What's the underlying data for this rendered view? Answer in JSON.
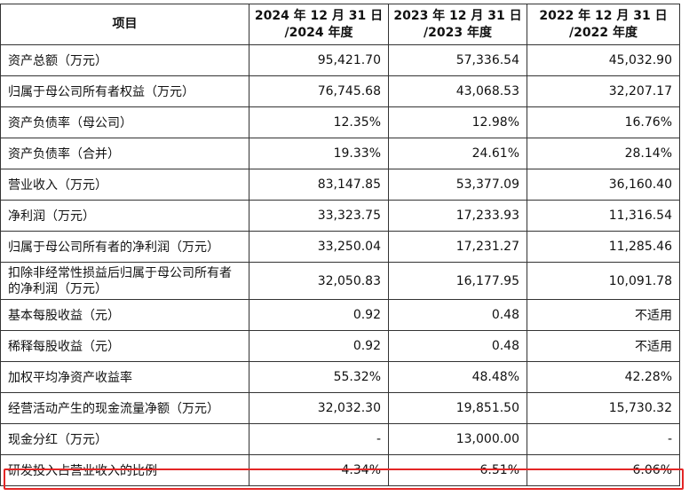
{
  "header": {
    "item": "项目",
    "col1_line1": "2024 年 12 月 31 日",
    "col1_line2": "/2024 年度",
    "col2_line1": "2023 年 12 月 31 日",
    "col2_line2": "/2023 年度",
    "col3_line1": "2022 年 12 月 31 日",
    "col3_line2": "/2022 年度"
  },
  "rows": [
    {
      "label": "资产总额（万元）",
      "v2024": "95,421.70",
      "v2023": "57,336.54",
      "v2022": "45,032.90"
    },
    {
      "label": "归属于母公司所有者权益（万元）",
      "v2024": "76,745.68",
      "v2023": "43,068.53",
      "v2022": "32,207.17"
    },
    {
      "label": "资产负债率（母公司）",
      "v2024": "12.35%",
      "v2023": "12.98%",
      "v2022": "16.76%"
    },
    {
      "label": "资产负债率（合并）",
      "v2024": "19.33%",
      "v2023": "24.61%",
      "v2022": "28.14%"
    },
    {
      "label": "营业收入（万元）",
      "v2024": "83,147.85",
      "v2023": "53,377.09",
      "v2022": "36,160.40"
    },
    {
      "label": "净利润（万元）",
      "v2024": "33,323.75",
      "v2023": "17,233.93",
      "v2022": "11,316.54"
    },
    {
      "label": "归属于母公司所有者的净利润（万元）",
      "v2024": "33,250.04",
      "v2023": "17,231.27",
      "v2022": "11,285.46"
    },
    {
      "label": "扣除非经常性损益后归属于母公司所有者的净利润（万元）",
      "v2024": "32,050.83",
      "v2023": "16,177.95",
      "v2022": "10,091.78"
    },
    {
      "label": "基本每股收益（元）",
      "v2024": "0.92",
      "v2023": "0.48",
      "v2022": "不适用"
    },
    {
      "label": "稀释每股收益（元）",
      "v2024": "0.92",
      "v2023": "0.48",
      "v2022": "不适用"
    },
    {
      "label": "加权平均净资产收益率",
      "v2024": "55.32%",
      "v2023": "48.48%",
      "v2022": "42.28%"
    },
    {
      "label": "经营活动产生的现金流量净额（万元）",
      "v2024": "32,032.30",
      "v2023": "19,851.50",
      "v2022": "15,730.32"
    },
    {
      "label": "现金分红（万元）",
      "v2024": "-",
      "v2023": "13,000.00",
      "v2022": "-"
    },
    {
      "label": "研发投入占营业收入的比例",
      "v2024": "4.34%",
      "v2023": "6.51%",
      "v2022": "6.06%"
    }
  ],
  "highlight_color": "#e32626"
}
